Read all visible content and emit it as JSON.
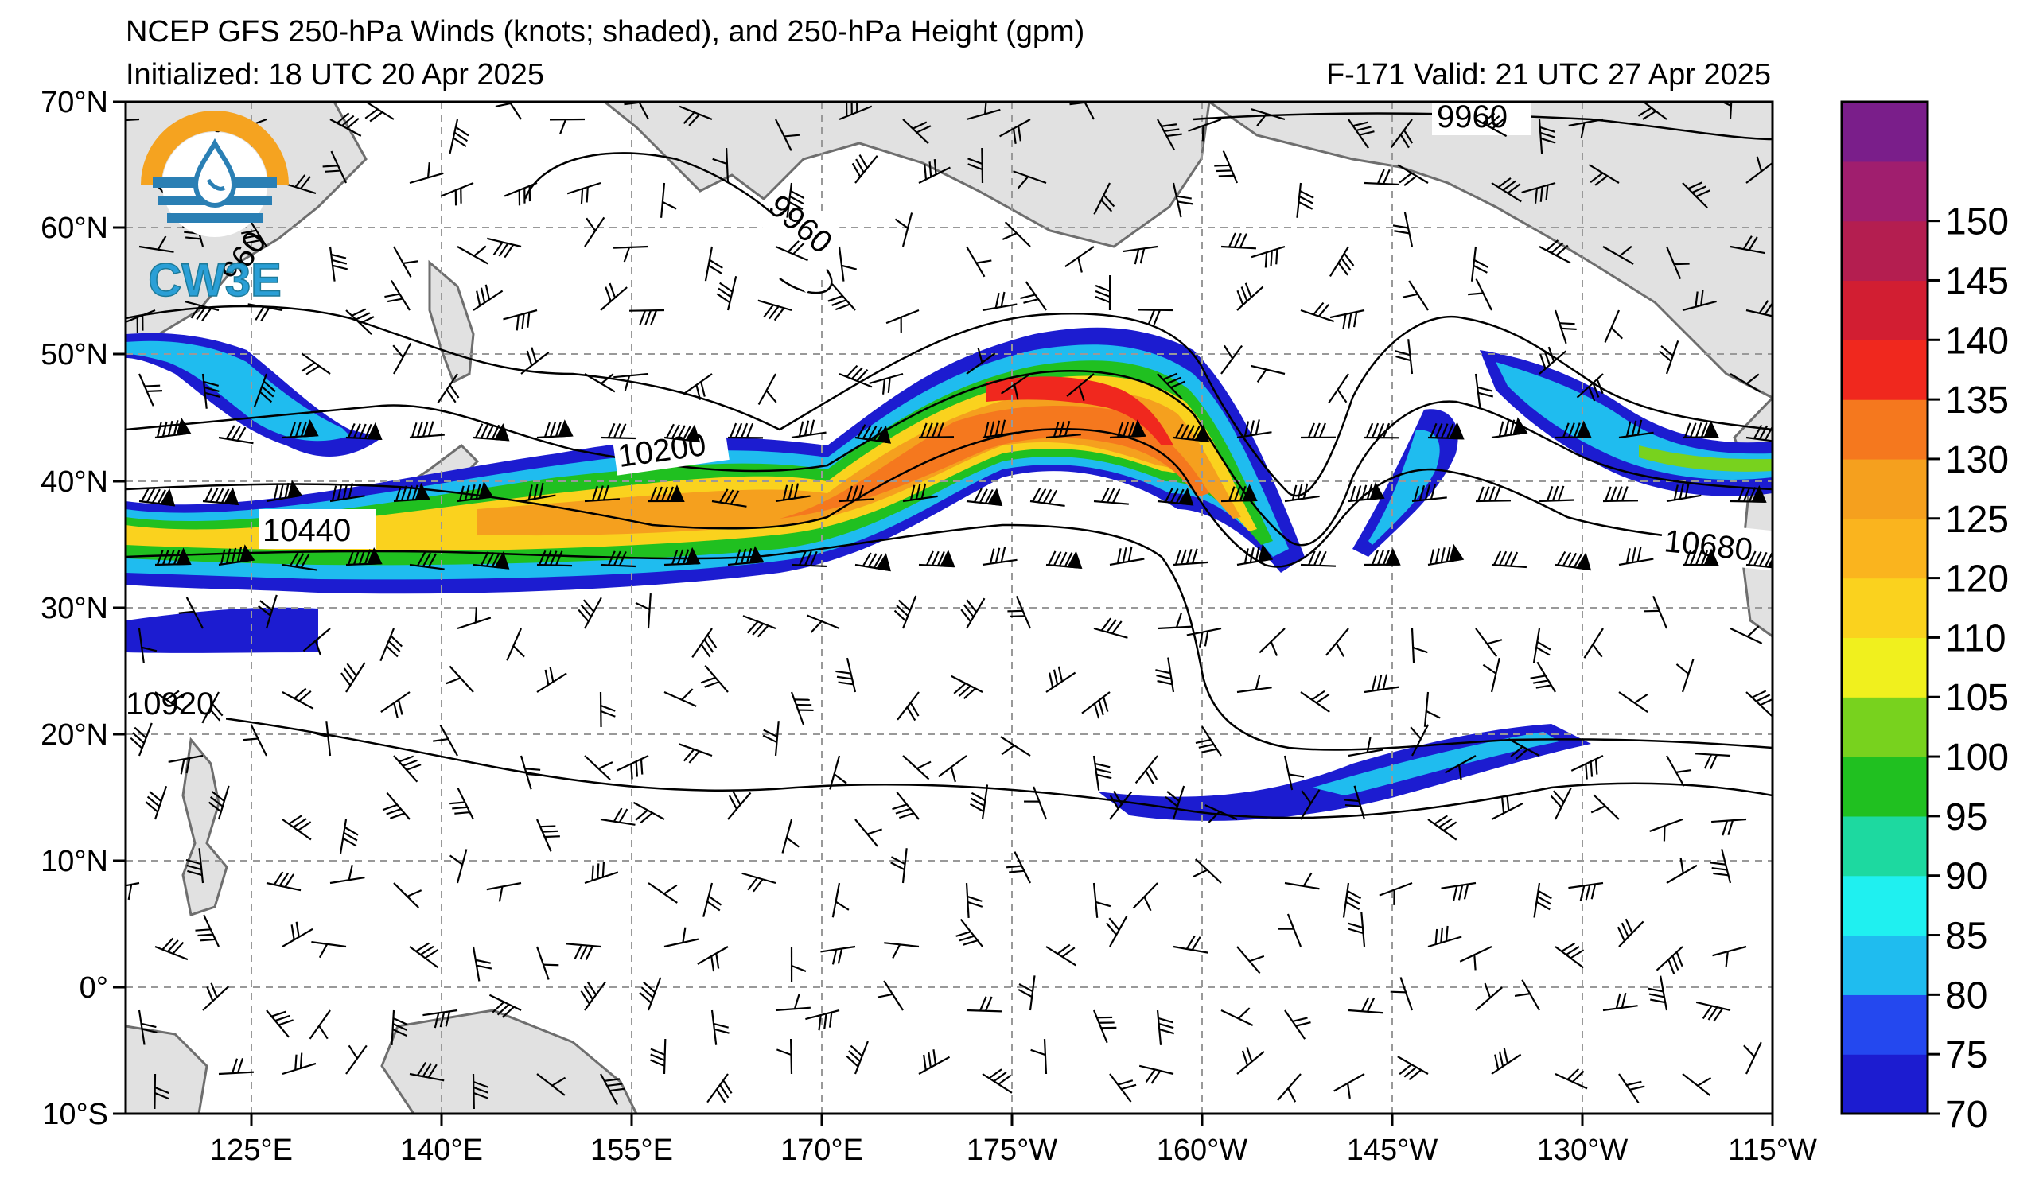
{
  "header": {
    "title": "NCEP GFS 250-hPa Winds (knots; shaded), and 250-hPa Height (gpm)",
    "initialized": "Initialized: 18 UTC 20 Apr 2025",
    "valid": "F-171  Valid: 21 UTC 27 Apr 2025"
  },
  "logo": {
    "text": "CW3E",
    "colors": {
      "orange": "#f5a320",
      "blue": "#2a7fb4",
      "teal": "#1d7a99"
    }
  },
  "axes": {
    "lat_labels": [
      "70°N",
      "60°N",
      "50°N",
      "40°N",
      "30°N",
      "20°N",
      "10°N",
      "0°",
      "10°S"
    ],
    "lon_labels": [
      "125°E",
      "140°E",
      "155°E",
      "170°E",
      "175°W",
      "160°W",
      "145°W",
      "130°W",
      "115°W"
    ]
  },
  "contour_labels": {
    "c9960a": "9960",
    "c9960b": "9960",
    "c9960c": "960",
    "c10200": "10200",
    "c10440": "10440",
    "c10680": "10680",
    "c10920": "10920"
  },
  "colorbar": {
    "ticks": [
      "70",
      "75",
      "80",
      "85",
      "90",
      "95",
      "100",
      "105",
      "110",
      "120",
      "125",
      "130",
      "135",
      "140",
      "145",
      "150"
    ],
    "colors": [
      "#1c1cd0",
      "#2448ef",
      "#1fbcef",
      "#1ff0f0",
      "#1dd9a0",
      "#20c020",
      "#78d21e",
      "#f0f01e",
      "#fad21e",
      "#fab41e",
      "#f5a01e",
      "#f5781e",
      "#f0281e",
      "#d21e32",
      "#b41e50",
      "#a01e6e",
      "#7a1e8a"
    ]
  },
  "colors": {
    "land": "#e1e1e1",
    "coast": "#6e6e6e",
    "grid": "#999999"
  }
}
